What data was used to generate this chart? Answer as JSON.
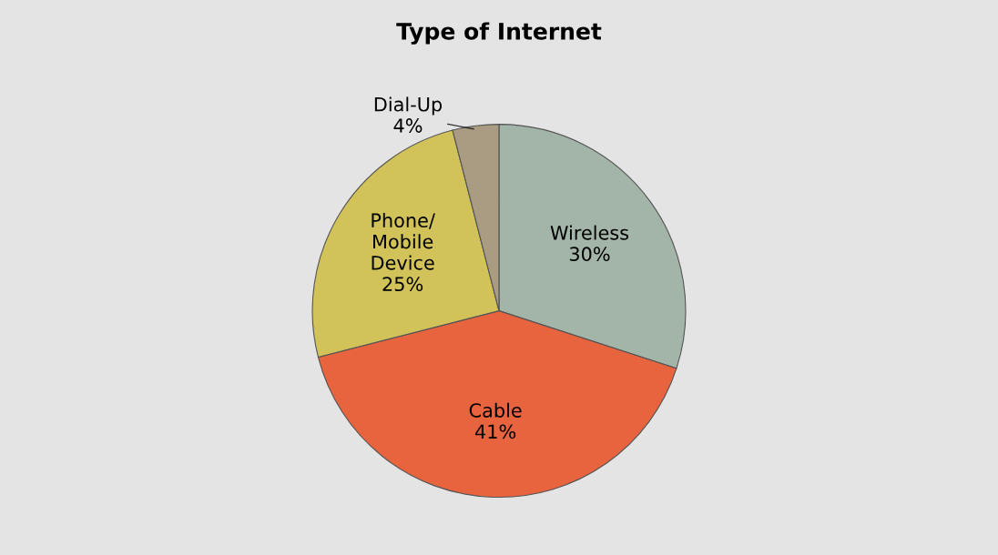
{
  "chart_data": {
    "type": "pie",
    "title": "Type of Internet",
    "categories": [
      "Wireless",
      "Cable",
      "Phone/\nMobile\nDevice",
      "Dial-Up"
    ],
    "values": [
      30,
      41,
      25,
      4
    ],
    "value_labels": [
      "30%",
      "41%",
      "25%",
      "4%"
    ],
    "colors": [
      "#a3b4a8",
      "#e8643e",
      "#d2c25a",
      "#a99c82"
    ],
    "legend": false
  }
}
